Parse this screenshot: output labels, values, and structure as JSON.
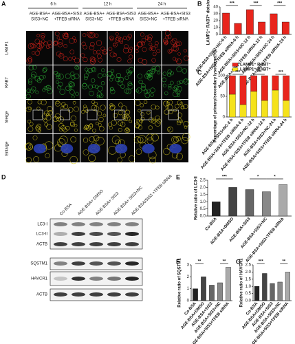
{
  "panel_a": {
    "label": "A",
    "times": [
      "6 h",
      "12 h",
      "24 h"
    ],
    "groups": [
      [
        "AGE-BSA+",
        "SIS3+NC"
      ],
      [
        "AGE-BSA+SIS3",
        "+TFEB siRNA"
      ],
      [
        "AGE-BSA+",
        "SIS3+NC"
      ],
      [
        "AGE-BSA+SIS3",
        "+TFEB siRNA"
      ],
      [
        "AGE-BSA+",
        "SIS3+NC"
      ],
      [
        "AGE-BSA+SIS3",
        "+TFEB siRNA"
      ]
    ],
    "rows": [
      "LAMP1",
      "RAB7",
      "Merge",
      "Enlarge"
    ]
  },
  "panel_d": {
    "label": "D",
    "lanes": [
      "Co-BSA",
      "AGE-BSA+ DMSO",
      "AGE-BSA+ SIS3",
      "AGE-BSA+ SIS3+NC",
      "AGE-BSA/SIS3 +TFEB siRNA"
    ],
    "rows": [
      "LC3-I",
      "LC3-II",
      "ACTB",
      "SQSTM1",
      "HAVCR1",
      "ACTB"
    ]
  },
  "chart_data": [
    {
      "type": "bar",
      "label": "B",
      "ylabel": "LAMP1⁺ RAB7⁺ dots/cell",
      "categories": [
        "AGE-BSA+SIS3+NC-6 h",
        "AGE-BSA+SIS3+TFEB siRNA-6 h",
        "AGE-BSA+SIS3+NC-12 h",
        "AGE-BSA+SIS3+TFEB siRNA-12 h",
        "AGE-BSA+SIS3+NC-24 h",
        "AGE-BSA+SIS3+TFEB siRNA-24 h"
      ],
      "values": [
        31,
        16,
        36,
        18,
        30,
        18
      ],
      "color": "#e8251c",
      "ylim": [
        0,
        40
      ],
      "yticks": [
        0,
        10,
        20,
        30,
        40
      ],
      "significance": [
        "***",
        "***",
        "***"
      ]
    },
    {
      "type": "stacked_bar",
      "label": "C",
      "ylabel": "Percentage of primary/secondary lysosome(%)",
      "categories": [
        "AGE-BSA+SIS3+NC-6 h",
        "AGE-BSA+SIS3+TFEB siRNA-6 h",
        "AGE-BSA+SIS3+NC-12 h",
        "AGE-BSA+SIS3+TFEB siRNA-12 h",
        "AGE-BSA+SIS3+NC-24 h",
        "AGE-BSA+SIS3+TFEB siRNA-24 h"
      ],
      "series": [
        {
          "name": "LAMP1⁺ RAB7⁺",
          "color": "#f5e21b",
          "values": [
            55,
            30,
            62,
            40,
            65,
            40
          ]
        },
        {
          "name": "LAMP1⁺ RAB7⁻",
          "color": "#e8251c",
          "values": [
            45,
            70,
            38,
            60,
            35,
            60
          ]
        }
      ],
      "ylim": [
        0,
        100
      ],
      "yticks": [
        0,
        50,
        100
      ],
      "significance": [
        "***",
        "***",
        "***"
      ]
    },
    {
      "type": "bar",
      "label": "E",
      "ylabel": "Relative ratio of LC3-II",
      "categories": [
        "Co-BSA",
        "AGE-BSA+DMSO",
        "AGE-BSA+SIS3",
        "AGE-BSA+SIS3+NC",
        "AGE-BSA+SIS3+TFEB siRNA"
      ],
      "values": [
        1.0,
        2.0,
        1.85,
        1.7,
        2.2
      ],
      "colors": [
        "#222222",
        "#444444",
        "#666666",
        "#888888",
        "#aaaaaa"
      ],
      "ylim": [
        0,
        2.5
      ],
      "yticks": [
        {
          "value": 0,
          "label": "0.0"
        },
        0.5,
        {
          "value": 1,
          "label": "1.0"
        },
        1.5,
        {
          "value": 2,
          "label": "2.0"
        },
        2.5
      ],
      "significance": [
        "***",
        "*",
        "*"
      ]
    },
    {
      "type": "bar",
      "label": "F",
      "ylabel": "Relative ratio of SQSTM1",
      "categories": [
        "Co-BSA",
        "AGE-BSA+DMSO",
        "AGE-BSA+SIS3",
        "AGE-BSA+SIS3+NC",
        "AGE-BSA+SIS3+TFEB siRNA"
      ],
      "values": [
        1.0,
        2.0,
        1.3,
        1.5,
        2.8
      ],
      "colors": [
        "#222222",
        "#444444",
        "#666666",
        "#888888",
        "#aaaaaa"
      ],
      "ylim": [
        0,
        3
      ],
      "yticks": [
        0,
        1,
        2,
        3
      ],
      "significance": [
        "**",
        "**"
      ]
    },
    {
      "type": "bar",
      "label": "G",
      "ylabel": "Relative ratio of HAVCR1",
      "categories": [
        "Co-BSA",
        "AGE-BSA+DMSO",
        "AGE-BSA+SIS3",
        "AGE-BSA+SIS3+NC",
        "AGE-BSA+SIS3+TFEB siRNA"
      ],
      "values": [
        1.0,
        1.9,
        1.2,
        1.3,
        2.0
      ],
      "colors": [
        "#222222",
        "#444444",
        "#666666",
        "#888888",
        "#aaaaaa"
      ],
      "ylim": [
        0,
        2.5
      ],
      "yticks": [
        {
          "value": 0,
          "label": "0.0"
        },
        0.5,
        {
          "value": 1,
          "label": "1.0"
        },
        1.5,
        {
          "value": 2,
          "label": "2.0"
        },
        2.5
      ],
      "significance": [
        "***",
        "**"
      ]
    }
  ]
}
